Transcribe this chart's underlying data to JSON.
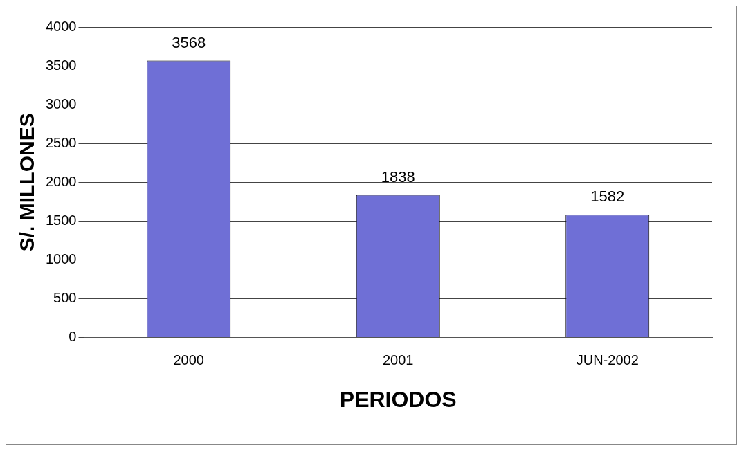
{
  "chart_data": {
    "type": "bar",
    "xlabel": "PERIODOS",
    "ylabel": "S/. MILLONES",
    "categories": [
      "2000",
      "2001",
      "JUN-2002"
    ],
    "values": [
      3568,
      1838,
      1582
    ],
    "color": "#6f6fd6",
    "ylim": [
      0,
      4000
    ],
    "yticks": [
      0,
      500,
      1000,
      1500,
      2000,
      2500,
      3000,
      3500,
      4000
    ],
    "grid": "y",
    "data_labels": true
  }
}
